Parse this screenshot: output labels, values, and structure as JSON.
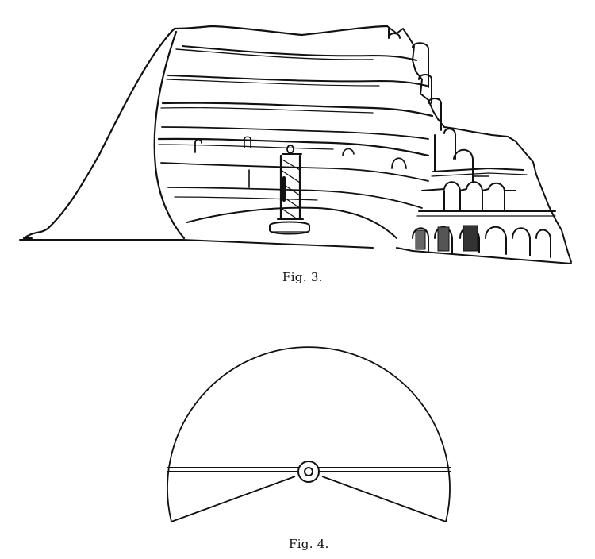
{
  "figures": [
    {
      "id": "fig3",
      "caption": "Fig. 3."
    },
    {
      "id": "fig4",
      "caption": "Fig. 4."
    }
  ]
}
